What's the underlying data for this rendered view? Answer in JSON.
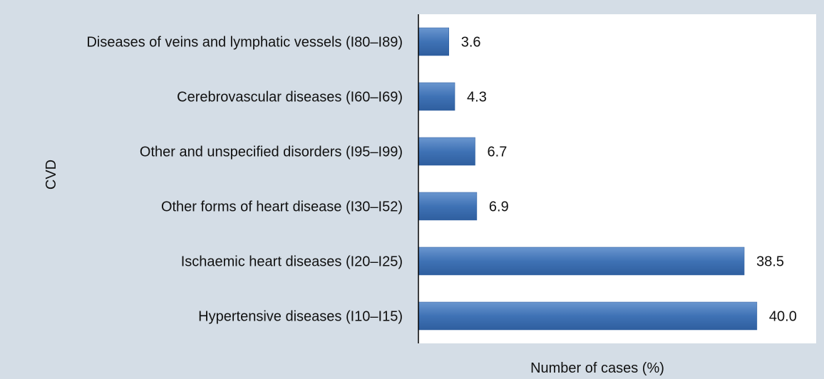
{
  "chart_data": {
    "type": "bar",
    "orientation": "horizontal",
    "categories": [
      "Diseases of veins and lymphatic vessels (I80–I89)",
      "Cerebrovascular diseases (I60–I69)",
      "Other and unspecified disorders (I95–I99)",
      "Other forms of heart disease (I30–I52)",
      "Ischaemic heart diseases (I20–I25)",
      "Hypertensive diseases (I10–I15)"
    ],
    "values": [
      3.6,
      4.3,
      6.7,
      6.9,
      38.5,
      40.0
    ],
    "value_labels": [
      "3.6",
      "4.3",
      "6.7",
      "6.9",
      "38.5",
      "40.0"
    ],
    "xlabel": "Number of cases (%)",
    "ylabel": "CVD",
    "xlim": [
      0,
      47
    ],
    "grid": false,
    "legend": "none"
  },
  "colors": {
    "background": "#d4dde6",
    "plot_area": "#ffffff",
    "bar": "#3f72b5",
    "bar_light": "#6a96cf",
    "bar_dark": "#2f5f9f",
    "axis": "#000000"
  }
}
